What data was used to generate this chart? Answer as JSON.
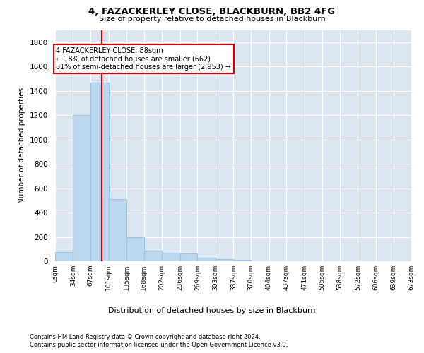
{
  "title": "4, FAZACKERLEY CLOSE, BLACKBURN, BB2 4FG",
  "subtitle": "Size of property relative to detached houses in Blackburn",
  "xlabel": "Distribution of detached houses by size in Blackburn",
  "ylabel": "Number of detached properties",
  "footnote1": "Contains HM Land Registry data © Crown copyright and database right 2024.",
  "footnote2": "Contains public sector information licensed under the Open Government Licence v3.0.",
  "annotation_line1": "4 FAZACKERLEY CLOSE: 88sqm",
  "annotation_line2": "← 18% of detached houses are smaller (662)",
  "annotation_line3": "81% of semi-detached houses are larger (2,953) →",
  "property_sqm": 88,
  "bar_color": "#bdd7ee",
  "bar_edge_color": "#9dc3e6",
  "vline_color": "#cc0000",
  "background_color": "#dce6f1",
  "bins": [
    0,
    34,
    67,
    101,
    135,
    168,
    202,
    236,
    269,
    303,
    337,
    370,
    404,
    437,
    471,
    505,
    538,
    572,
    606,
    639,
    673
  ],
  "bin_labels": [
    "0sqm",
    "34sqm",
    "67sqm",
    "101sqm",
    "135sqm",
    "168sqm",
    "202sqm",
    "236sqm",
    "269sqm",
    "303sqm",
    "337sqm",
    "370sqm",
    "404sqm",
    "437sqm",
    "471sqm",
    "505sqm",
    "538sqm",
    "572sqm",
    "606sqm",
    "639sqm",
    "673sqm"
  ],
  "counts": [
    75,
    1200,
    1470,
    510,
    200,
    85,
    70,
    65,
    30,
    20,
    10,
    0,
    0,
    0,
    0,
    0,
    0,
    0,
    0,
    0
  ],
  "ylim": [
    0,
    1900
  ],
  "yticks": [
    0,
    200,
    400,
    600,
    800,
    1000,
    1200,
    1400,
    1600,
    1800
  ]
}
